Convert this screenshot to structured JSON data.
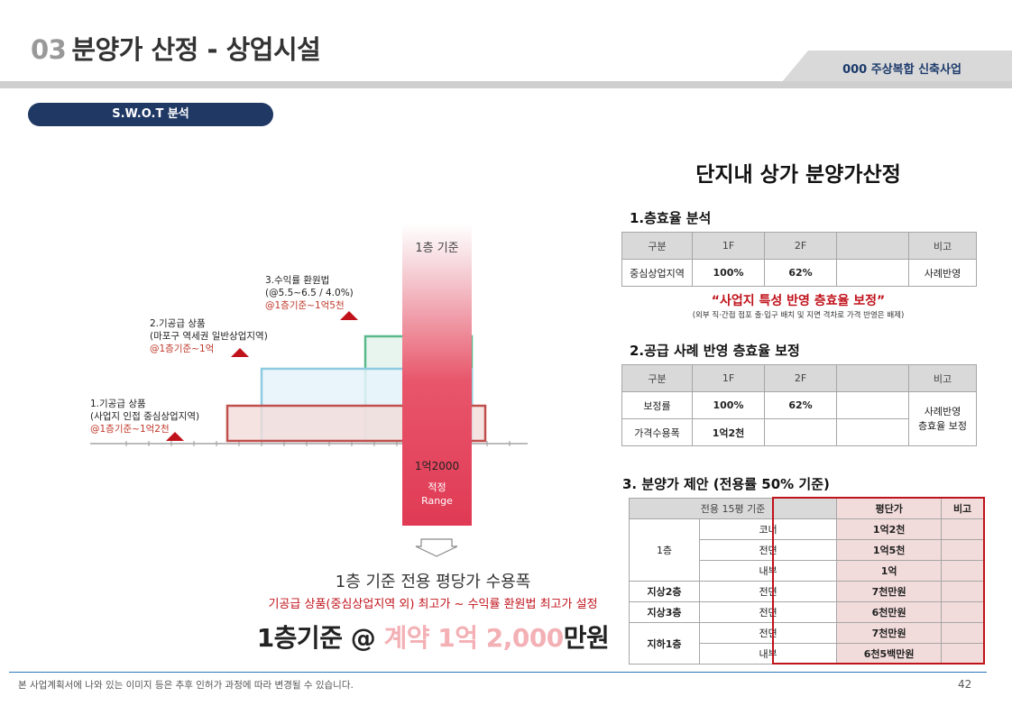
{
  "header": {
    "num": "03",
    "title": "분양가 산정  - 상업시설",
    "project": "000 주상복합 신축사업"
  },
  "badge": "S.W.O.T 분석",
  "left": {
    "range_label": "1층 기준",
    "range_value": "1억2000",
    "range_text1": "적정",
    "range_text2": "Range",
    "notes": [
      {
        "l1": "3.수익률 환원법",
        "l2": "(@5.5~6.5 / 4.0%)",
        "l3": "@1층기준~1억5천"
      },
      {
        "l1": "2.기공급 상품",
        "l2": "(마포구 역세권 일반상업지역)",
        "l3": "@1층기준~1억"
      },
      {
        "l1": "1.기공급 상품",
        "l2": "(사업지 인접 중심상업지역)",
        "l3": "@1층기준~1억2천"
      }
    ],
    "subtitle": "1층 기준 전용 평당가 수용폭",
    "red_sub": "기공급 상품(중심상업지역 외) 최고가 ~ 수익률 환원법 최고가 설정",
    "big_a": "1층기준 @ ",
    "big_b": "계약 1억 2,000",
    "big_c": "만원"
  },
  "right": {
    "title": "단지내 상가 분양가산정",
    "s1": "1.층효율 분석",
    "t1": {
      "h": [
        "구분",
        "1F",
        "2F",
        "",
        "비고"
      ],
      "r": [
        "중심상업지역",
        "100%",
        "62%",
        "",
        "사례반영"
      ]
    },
    "quote": "“사업지 특성 반영 층효율 보정”",
    "note": "(외부 직·간접 점포 출·입구 배치 및 지면 격차로 가격 반영은 배제)",
    "s2": "2.공급 사례 반영 층효율 보정",
    "t2": {
      "h": [
        "구분",
        "1F",
        "2F",
        "",
        "비고"
      ],
      "r1": [
        "보정률",
        "100%",
        "62%",
        ""
      ],
      "r2": [
        "가격수용폭",
        "1억2천",
        "",
        ""
      ],
      "memo1": "사례반영",
      "memo2": "층효율 보정"
    },
    "s3": "3. 분양가 제안 (전용률 50% 기준)",
    "t3": {
      "h": [
        "전용 15평 기준",
        "평단가",
        "비고"
      ],
      "f1": "1층",
      "f2": "지상2층",
      "f3": "지상3층",
      "f4": "지하1층",
      "rows": [
        [
          "코너",
          "1억2천"
        ],
        [
          "전면",
          "1억5천"
        ],
        [
          "내부",
          "1억"
        ],
        [
          "전면",
          "7천만원"
        ],
        [
          "전면",
          "6천만원"
        ],
        [
          "전면",
          "7천만원"
        ],
        [
          "내부",
          "6천5백만원"
        ]
      ]
    }
  },
  "footer": {
    "text": "본 사업계획서에 나와 있는 이미지 등은  추후 인허가 과정에 따라 변경될 수 있습니다.",
    "page": "42"
  }
}
